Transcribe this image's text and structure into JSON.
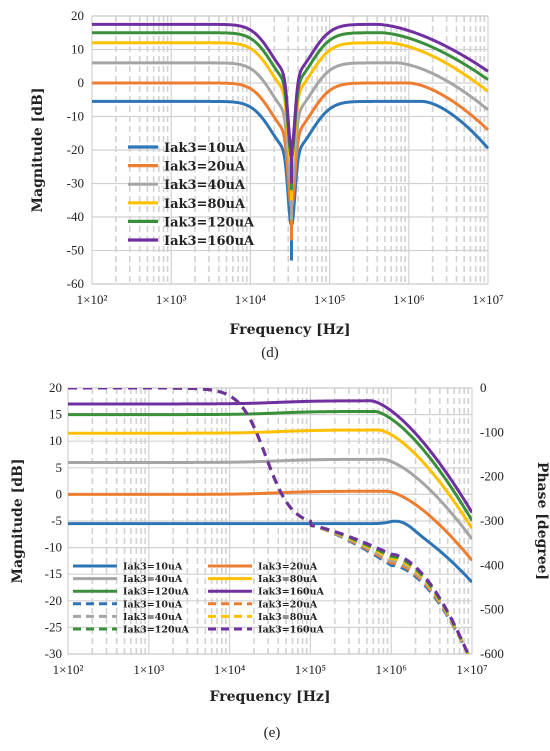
{
  "charts": [
    {
      "type": "line",
      "caption": "(d)",
      "xlabel": "Frequency [Hz]",
      "ylabel": "Magnitude [dB]",
      "xscale": "log",
      "xlim": [
        100,
        10000000
      ],
      "ylim": [
        -60,
        20
      ],
      "ytick_step": 10,
      "x_tick_labels": [
        "1×10²",
        "1×10³",
        "1×10⁴",
        "1×10⁵",
        "1×10⁶",
        "1×10⁷"
      ],
      "y_tick_labels": [
        "20",
        "10",
        "0",
        "-10",
        "-20",
        "-30",
        "-40",
        "-50",
        "-60"
      ],
      "legend": {
        "placement": "center-left",
        "entries": [
          "Iak3=10uA",
          "Iak3=20uA",
          "Iak3=40uA",
          "Iak3=80uA",
          "Iak3=120uA",
          "Iak3=160uA"
        ]
      },
      "grid": true,
      "notch_freq_hz": 33000,
      "series": [
        {
          "name": "Iak3=10uA",
          "color": "#2E75B6",
          "plateau_db": -5.5,
          "notch_db": -53,
          "rolloff_start_hz": 1500000,
          "db_at_1e7": -19.5
        },
        {
          "name": "Iak3=20uA",
          "color": "#ED7D31",
          "plateau_db": 0,
          "notch_db": -47,
          "rolloff_start_hz": 1000000,
          "db_at_1e7": -14
        },
        {
          "name": "Iak3=40uA",
          "color": "#A5A5A5",
          "plateau_db": 6,
          "notch_db": -41,
          "rolloff_start_hz": 700000,
          "db_at_1e7": -8
        },
        {
          "name": "Iak3=80uA",
          "color": "#FFC000",
          "plateau_db": 12,
          "notch_db": -35,
          "rolloff_start_hz": 550000,
          "db_at_1e7": -2.5
        },
        {
          "name": "Iak3=120uA",
          "color": "#3A8F3A",
          "plateau_db": 15,
          "notch_db": -32,
          "rolloff_start_hz": 450000,
          "db_at_1e7": 1
        },
        {
          "name": "Iak3=160uA",
          "color": "#7030A0",
          "plateau_db": 17.5,
          "notch_db": -30,
          "rolloff_start_hz": 400000,
          "db_at_1e7": 3.5
        }
      ]
    },
    {
      "type": "line",
      "caption": "(e)",
      "xlabel": "Frequency [Hz]",
      "ylabel": "Magnitude [dB]",
      "y2label": "Phase [degree]",
      "xscale": "log",
      "xlim": [
        100,
        10000000
      ],
      "ylim": [
        -30,
        20
      ],
      "y2lim": [
        -600,
        0
      ],
      "x_tick_labels": [
        "1×10²",
        "1×10³",
        "1×10⁴",
        "1×10⁵",
        "1×10⁶",
        "1×10⁷"
      ],
      "y_tick_labels": [
        "20",
        "15",
        "10",
        "5",
        "0",
        "-5",
        "-10",
        "-15",
        "-20",
        "-25",
        "-30"
      ],
      "y2_tick_labels": [
        "0",
        "-100",
        "-200",
        "-300",
        "-400",
        "-500",
        "-600"
      ],
      "legend": {
        "placement": "bottom-left",
        "columns": 2,
        "entries": [
          "Iak3=10uA",
          "Iak3=20uA",
          "Iak3=40uA",
          "Iak3=80uA",
          "Iak3=120uA",
          "Iak3=160uA",
          "Iak3=10uA",
          "Iak3=20uA",
          "Iak3=40uA",
          "Iak3=80uA",
          "Iak3=120uA",
          "Iak3=160uA"
        ]
      },
      "grid": true,
      "magnitude_series": [
        {
          "name": "Iak3=10uA",
          "color": "#2E75B6",
          "plateau_db": -5.5,
          "db_at_1e7": -16.5
        },
        {
          "name": "Iak3=20uA",
          "color": "#ED7D31",
          "plateau_db": 0,
          "db_at_1e7": -13
        },
        {
          "name": "Iak3=40uA",
          "color": "#A5A5A5",
          "plateau_db": 6,
          "db_at_1e7": -9
        },
        {
          "name": "Iak3=80uA",
          "color": "#FFC000",
          "plateau_db": 11.5,
          "db_at_1e7": -7
        },
        {
          "name": "Iak3=120uA",
          "color": "#3A8F3A",
          "plateau_db": 15,
          "db_at_1e7": -5.5
        },
        {
          "name": "Iak3=160uA",
          "color": "#7030A0",
          "plateau_db": 17,
          "db_at_1e7": -4
        }
      ],
      "phase_series": [
        {
          "name": "Iak3=10uA",
          "color": "#2E75B6",
          "deg_at_1e5": -310,
          "deg_at_1e6": -400,
          "deg_at_1e7": -600
        },
        {
          "name": "Iak3=20uA",
          "color": "#ED7D31",
          "deg_at_1e5": -310,
          "deg_at_1e6": -395,
          "deg_at_1e7": -600
        },
        {
          "name": "Iak3=40uA",
          "color": "#A5A5A5",
          "deg_at_1e5": -310,
          "deg_at_1e6": -390,
          "deg_at_1e7": -600
        },
        {
          "name": "Iak3=80uA",
          "color": "#FFC000",
          "deg_at_1e5": -310,
          "deg_at_1e6": -385,
          "deg_at_1e7": -600
        },
        {
          "name": "Iak3=120uA",
          "color": "#3A8F3A",
          "deg_at_1e5": -310,
          "deg_at_1e6": -380,
          "deg_at_1e7": -600
        },
        {
          "name": "Iak3=160uA",
          "color": "#7030A0",
          "deg_at_1e5": -310,
          "deg_at_1e6": -375,
          "deg_at_1e7": -600
        }
      ]
    }
  ]
}
